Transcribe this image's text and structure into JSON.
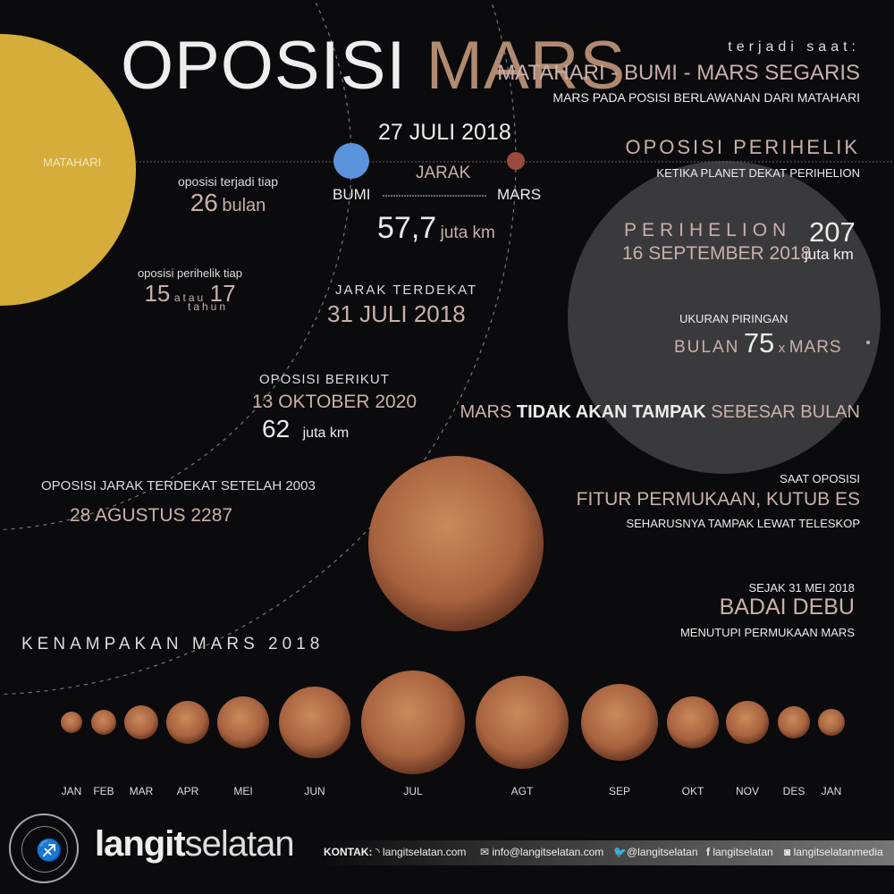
{
  "title": {
    "part1": "OPOSISI",
    "part2": "MARS"
  },
  "sun_label": "MATAHARI",
  "top_right": {
    "intro": "terjadi saat:",
    "alignment": "MATAHARI - BUMI - MARS SEGARIS",
    "alignment_sub": "MARS  PADA POSISI BERLAWANAN DARI MATAHARI",
    "perihelic_title": "OPOSISI PERIHELIK",
    "perihelic_sub": "KETIKA PLANET DEKAT PERIHELION"
  },
  "opposition": {
    "date": "27 JULI 2018",
    "distance_label": "JARAK",
    "earth_label": "BUMI",
    "mars_label": "MARS",
    "distance_value": "57,7",
    "distance_unit": "juta km"
  },
  "frequency": {
    "label": "oposisi terjadi tiap",
    "value": "26",
    "unit": "bulan"
  },
  "perihelic_frequency": {
    "label": "oposisi perihelik tiap",
    "value1": "15",
    "or": "atau",
    "value2": "17",
    "unit": "tahun"
  },
  "closest": {
    "label": "JARAK TERDEKAT",
    "date": "31 JULI 2018"
  },
  "next": {
    "label": "OPOSISI BERIKUT",
    "date": "13 OKTOBER 2020",
    "value": "62",
    "unit": "juta km"
  },
  "after2003": {
    "label": "OPOSISI JARAK TERDEKAT SETELAH 2003",
    "date": "28 AGUSTUS 2287"
  },
  "perihelion": {
    "label": "PERIHELION",
    "date": "16 SEPTEMBER 2018",
    "value": "207",
    "unit": "juta km",
    "disc_label": "UKURAN PIRINGAN",
    "moon": "BULAN",
    "ratio": "75",
    "times": "x",
    "mars": "MARS"
  },
  "not_as_big": {
    "part1": "MARS",
    "part2": "TIDAK AKAN TAMPAK",
    "part3": "SEBESAR BULAN"
  },
  "surface": {
    "label": "SAAT OPOSISI",
    "title": "FITUR PERMUKAAN, KUTUB ES",
    "sub": "SEHARUSNYA TAMPAK LEWAT TELESKOP"
  },
  "storm": {
    "label": "SEJAK 31 MEI 2018",
    "title": "BADAI DEBU",
    "sub": "MENUTUPI PERMUKAAN MARS"
  },
  "appearance": {
    "title": "KENAMPAKAN MARS 2018",
    "months": [
      "JAN",
      "FEB",
      "MAR",
      "APR",
      "MEI",
      "JUN",
      "JUL",
      "AGT",
      "SEP",
      "OKT",
      "NOV",
      "DES",
      "JAN"
    ]
  },
  "footer": {
    "logo_seal_text": "LANGITSELATAN ASTRO 101",
    "brand1": "langit",
    "brand2": "selatan",
    "contact_label": "KONTAK:",
    "website": "langitselatan.com",
    "email": "info@langitselatan.com",
    "twitter": "@langitselatan",
    "facebook": "langitselatan",
    "instagram": "langitselatanmedia"
  },
  "colors": {
    "sun": "#d6ad3b",
    "earth": "#5b93dc",
    "mars": "#9a4a40",
    "accent_text": "#c9b0ad",
    "title_mars": "#b08a70",
    "background": "#0b0b0d"
  }
}
